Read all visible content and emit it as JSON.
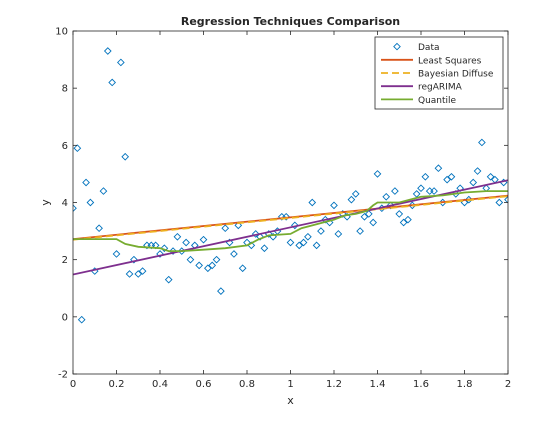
{
  "chart_data": {
    "type": "scatter",
    "title": "Regression Techniques Comparison",
    "xlabel": "x",
    "ylabel": "y",
    "xlim": [
      0,
      2
    ],
    "ylim": [
      -2,
      10
    ],
    "x_ticks": [
      "0",
      "0.2",
      "0.4",
      "0.6",
      "0.8",
      "1",
      "1.2",
      "1.4",
      "1.6",
      "1.8",
      "2"
    ],
    "y_ticks": [
      "-2",
      "0",
      "2",
      "4",
      "6",
      "8",
      "10"
    ],
    "grid": false,
    "legend_position": "top-right",
    "points": {
      "name": "Data",
      "marker": "diamond",
      "color": "#0072BD",
      "x": [
        0.0,
        0.02,
        0.04,
        0.06,
        0.08,
        0.1,
        0.12,
        0.14,
        0.16,
        0.18,
        0.2,
        0.22,
        0.24,
        0.26,
        0.28,
        0.3,
        0.32,
        0.34,
        0.36,
        0.38,
        0.4,
        0.42,
        0.44,
        0.46,
        0.48,
        0.5,
        0.52,
        0.54,
        0.56,
        0.58,
        0.6,
        0.62,
        0.64,
        0.66,
        0.68,
        0.7,
        0.72,
        0.74,
        0.76,
        0.78,
        0.8,
        0.82,
        0.84,
        0.86,
        0.88,
        0.9,
        0.92,
        0.94,
        0.96,
        0.98,
        1.0,
        1.02,
        1.04,
        1.06,
        1.08,
        1.1,
        1.12,
        1.14,
        1.16,
        1.18,
        1.2,
        1.22,
        1.24,
        1.26,
        1.28,
        1.3,
        1.32,
        1.34,
        1.36,
        1.38,
        1.4,
        1.42,
        1.44,
        1.46,
        1.48,
        1.5,
        1.52,
        1.54,
        1.56,
        1.58,
        1.6,
        1.62,
        1.64,
        1.66,
        1.68,
        1.7,
        1.72,
        1.74,
        1.76,
        1.78,
        1.8,
        1.82,
        1.84,
        1.86,
        1.88,
        1.9,
        1.92,
        1.94,
        1.96,
        1.98,
        2.0
      ],
      "y": [
        3.8,
        5.9,
        -0.1,
        4.7,
        4.0,
        1.6,
        3.1,
        4.4,
        9.3,
        8.2,
        2.2,
        8.9,
        5.6,
        1.5,
        2.0,
        1.5,
        1.6,
        2.5,
        2.5,
        2.5,
        2.2,
        2.4,
        1.3,
        2.3,
        2.8,
        2.3,
        2.6,
        2.0,
        2.5,
        1.8,
        2.7,
        1.7,
        1.8,
        2.0,
        0.9,
        3.1,
        2.6,
        2.2,
        3.2,
        1.7,
        2.6,
        2.5,
        2.9,
        2.8,
        2.4,
        2.9,
        2.8,
        3.0,
        3.5,
        3.5,
        2.6,
        3.2,
        2.5,
        2.6,
        2.8,
        4.0,
        2.5,
        3.0,
        3.4,
        3.3,
        3.9,
        2.9,
        3.6,
        3.5,
        4.1,
        4.3,
        3.0,
        3.5,
        3.6,
        3.3,
        5.0,
        3.8,
        4.2,
        3.9,
        4.4,
        3.6,
        3.3,
        3.4,
        3.9,
        4.3,
        4.5,
        4.9,
        4.4,
        4.4,
        5.2,
        4.0,
        4.8,
        4.9,
        4.3,
        4.5,
        4.0,
        4.1,
        4.7,
        5.1,
        6.1,
        4.5,
        4.9,
        4.8,
        4.0,
        4.7,
        4.1
      ]
    },
    "series": [
      {
        "name": "Least Squares",
        "color": "#D95319",
        "style": "solid",
        "x": [
          0,
          2
        ],
        "y": [
          2.72,
          4.24
        ]
      },
      {
        "name": "Bayesian Diffuse",
        "color": "#EDB120",
        "style": "dashed",
        "x": [
          0,
          2
        ],
        "y": [
          2.7,
          4.22
        ]
      },
      {
        "name": "regARIMA",
        "color": "#7E2F8E",
        "style": "solid",
        "x": [
          0,
          2
        ],
        "y": [
          1.48,
          4.78
        ]
      },
      {
        "name": "Quantile",
        "color": "#77AC30",
        "style": "solid",
        "x": [
          0.0,
          0.2,
          0.24,
          0.3,
          0.4,
          0.44,
          0.5,
          0.6,
          0.7,
          0.8,
          0.85,
          0.9,
          1.0,
          1.05,
          1.1,
          1.15,
          1.2,
          1.25,
          1.3,
          1.35,
          1.38,
          1.4,
          1.45,
          1.5,
          1.55,
          1.6,
          1.7,
          1.8,
          1.9,
          2.0
        ],
        "y": [
          2.72,
          2.72,
          2.55,
          2.45,
          2.4,
          2.3,
          2.3,
          2.35,
          2.4,
          2.5,
          2.7,
          2.85,
          2.9,
          3.1,
          3.2,
          3.3,
          3.4,
          3.55,
          3.6,
          3.7,
          3.9,
          4.0,
          4.0,
          4.0,
          4.1,
          4.2,
          4.25,
          4.35,
          4.4,
          4.4
        ]
      }
    ]
  }
}
